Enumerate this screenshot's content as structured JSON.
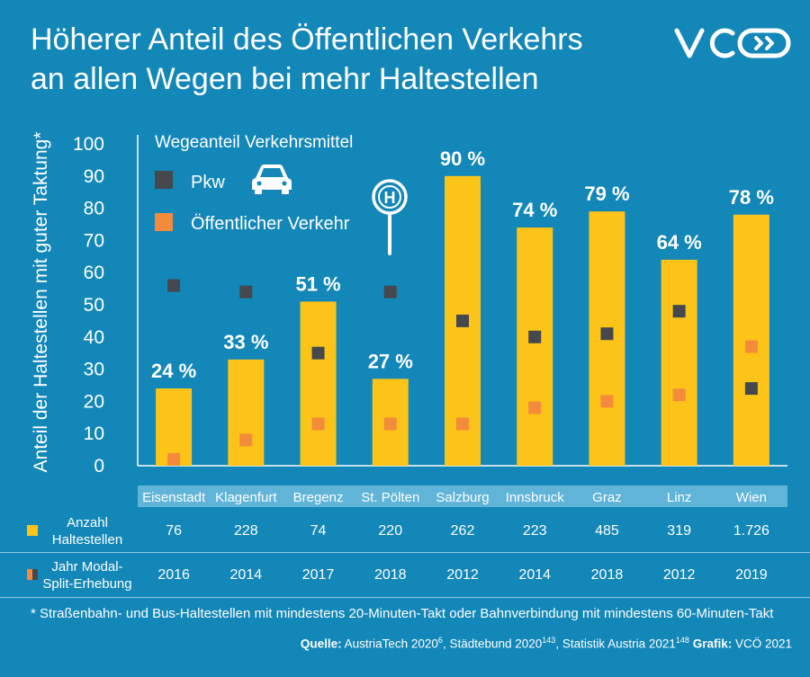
{
  "title_line1": "Höherer Anteil des Öffentlichen Verkehrs",
  "title_line2": "an allen Wegen bei mehr Haltestellen",
  "colors": {
    "background": "#1387b8",
    "bar": "#fcc419",
    "pkw": "#45484d",
    "oev": "#f48a3c",
    "city_strip": "#5fb4d8"
  },
  "chart_data": {
    "type": "bar",
    "ylabel": "Anteil der Haltestellen mit guter Taktung*",
    "ylim": [
      0,
      100
    ],
    "yticks": [
      0,
      10,
      20,
      30,
      40,
      50,
      60,
      70,
      80,
      90,
      100
    ],
    "categories": [
      "Eisenstadt",
      "Klagenfurt",
      "Bregenz",
      "St. Pölten",
      "Salzburg",
      "Innsbruck",
      "Graz",
      "Linz",
      "Wien"
    ],
    "values": [
      24,
      33,
      51,
      27,
      90,
      74,
      79,
      64,
      78
    ],
    "value_labels": [
      "24 %",
      "33 %",
      "51 %",
      "27 %",
      "90 %",
      "74 %",
      "79 %",
      "64 %",
      "78 %"
    ],
    "legend_title": "Wegeanteil Verkehrsmittel",
    "series": [
      {
        "name": "Pkw",
        "values": [
          56,
          54,
          35,
          54,
          45,
          40,
          41,
          48,
          24
        ]
      },
      {
        "name": "Öffentlicher Verkehr",
        "values": [
          2,
          8,
          13,
          13,
          13,
          18,
          20,
          22,
          37
        ]
      }
    ]
  },
  "table": {
    "rows": [
      {
        "label_line1": "Anzahl",
        "label_line2": "Haltestellen",
        "values": [
          "76",
          "228",
          "74",
          "220",
          "262",
          "223",
          "485",
          "319",
          "1.726"
        ]
      },
      {
        "label_line1": "Jahr Modal-",
        "label_line2": "Split-Erhebung",
        "values": [
          "2016",
          "2014",
          "2017",
          "2018",
          "2012",
          "2014",
          "2018",
          "2012",
          "2019"
        ]
      }
    ]
  },
  "footnote": "* Straßenbahn- und Bus-Haltestellen mit mindestens 20-Minuten-Takt oder Bahnverbindung mit mindestens 60-Minuten-Takt",
  "source": {
    "label": "Quelle:",
    "part1": " AustriaTech 2020",
    "sup1": "6",
    "part2": ", Städtebund 2020",
    "sup2": "143",
    "part3": ", Statistik Austria 2021",
    "sup3": "148",
    "grafik_label": " Grafik:",
    "grafik_value": " VCÖ 2021"
  },
  "icons": [
    "car-icon",
    "bus-stop-icon",
    "vco-logo"
  ]
}
